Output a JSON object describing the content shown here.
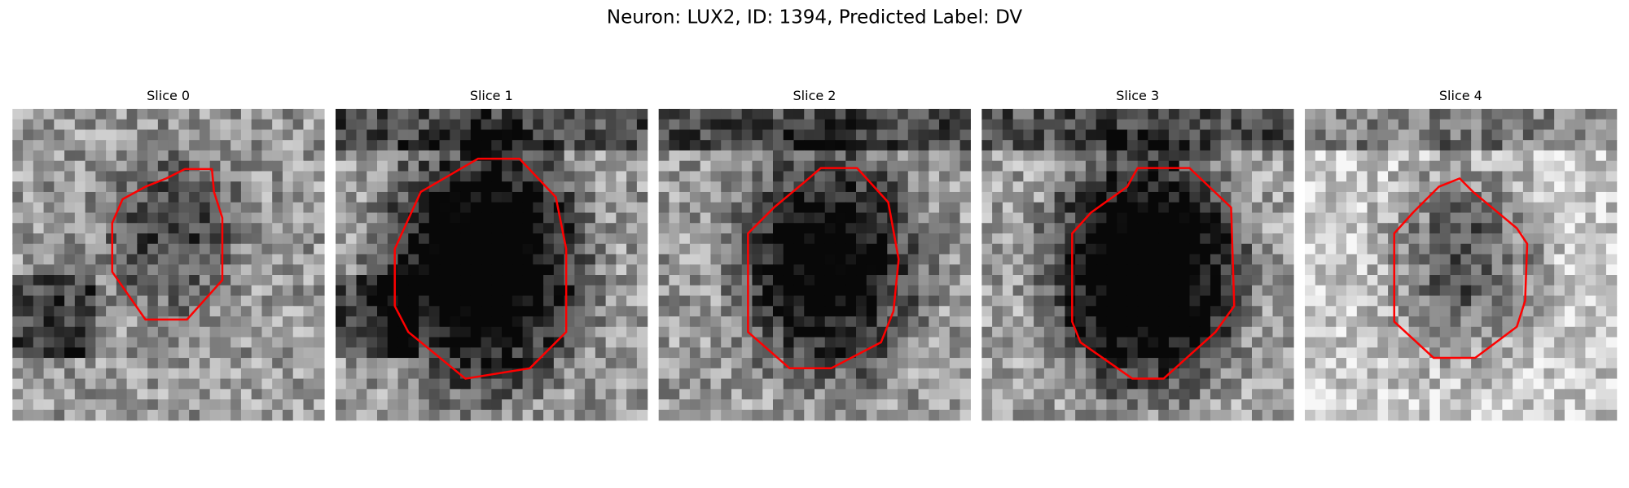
{
  "header": {
    "title": "Neuron: LUX2, ID: 1394, Predicted Label: DV"
  },
  "panels": [
    {
      "title": "Slice 0"
    },
    {
      "title": "Slice 1"
    },
    {
      "title": "Slice 2"
    },
    {
      "title": "Slice 3"
    },
    {
      "title": "Slice 4"
    }
  ]
}
